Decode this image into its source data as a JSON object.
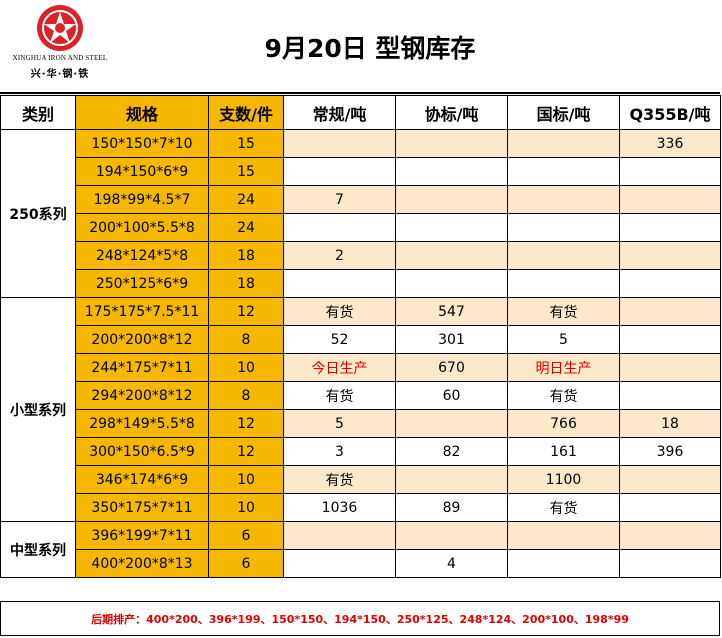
{
  "header": {
    "logo_en": "XINGHUA IRON AND STEEL",
    "logo_cn": "兴·华·钢·铁",
    "title": "9月20日  型钢库存"
  },
  "columns": [
    "类别",
    "规格",
    "支数/件",
    "常规/吨",
    "协标/吨",
    "国标/吨",
    "Q355B/吨"
  ],
  "groups": [
    {
      "name": "250系列",
      "rows": [
        {
          "spec": "150*150*7*10",
          "count": "15",
          "regular": "",
          "assoc": "",
          "national": "",
          "q355b": "336"
        },
        {
          "spec": "194*150*6*9",
          "count": "15",
          "regular": "",
          "assoc": "",
          "national": "",
          "q355b": ""
        },
        {
          "spec": "198*99*4.5*7",
          "count": "24",
          "regular": "7",
          "assoc": "",
          "national": "",
          "q355b": ""
        },
        {
          "spec": "200*100*5.5*8",
          "count": "24",
          "regular": "",
          "assoc": "",
          "national": "",
          "q355b": ""
        },
        {
          "spec": "248*124*5*8",
          "count": "18",
          "regular": "2",
          "assoc": "",
          "national": "",
          "q355b": ""
        },
        {
          "spec": "250*125*6*9",
          "count": "18",
          "regular": "",
          "assoc": "",
          "national": "",
          "q355b": ""
        }
      ]
    },
    {
      "name": "小型系列",
      "rows": [
        {
          "spec": "175*175*7.5*11",
          "count": "12",
          "regular": "有货",
          "assoc": "547",
          "national": "有货",
          "q355b": ""
        },
        {
          "spec": "200*200*8*12",
          "count": "8",
          "regular": "52",
          "assoc": "301",
          "national": "5",
          "q355b": ""
        },
        {
          "spec": "244*175*7*11",
          "count": "10",
          "regular": "今日生产",
          "assoc": "670",
          "national": "明日生产",
          "q355b": ""
        },
        {
          "spec": "294*200*8*12",
          "count": "8",
          "regular": "有货",
          "assoc": "60",
          "national": "有货",
          "q355b": ""
        },
        {
          "spec": "298*149*5.5*8",
          "count": "12",
          "regular": "5",
          "assoc": "",
          "national": "766",
          "q355b": "18"
        },
        {
          "spec": "300*150*6.5*9",
          "count": "12",
          "regular": "3",
          "assoc": "82",
          "national": "161",
          "q355b": "396"
        },
        {
          "spec": "346*174*6*9",
          "count": "10",
          "regular": "有货",
          "assoc": "",
          "national": "1100",
          "q355b": ""
        },
        {
          "spec": "350*175*7*11",
          "count": "10",
          "regular": "1036",
          "assoc": "89",
          "national": "有货",
          "q355b": ""
        }
      ]
    },
    {
      "name": "中型系列",
      "rows": [
        {
          "spec": "396*199*7*11",
          "count": "6",
          "regular": "",
          "assoc": "",
          "national": "",
          "q355b": ""
        },
        {
          "spec": "400*200*8*13",
          "count": "6",
          "regular": "",
          "assoc": "4",
          "national": "",
          "q355b": ""
        }
      ]
    }
  ],
  "footer_note": "后期排产：400*200、396*199、150*150、194*150、250*125、248*124、200*100、198*99",
  "colors": {
    "gold": "#f5b700",
    "tint": "#fde9c9",
    "red": "#e00000",
    "logo_red": "#d8232a"
  },
  "red_values": [
    "今日生产",
    "明日生产"
  ]
}
